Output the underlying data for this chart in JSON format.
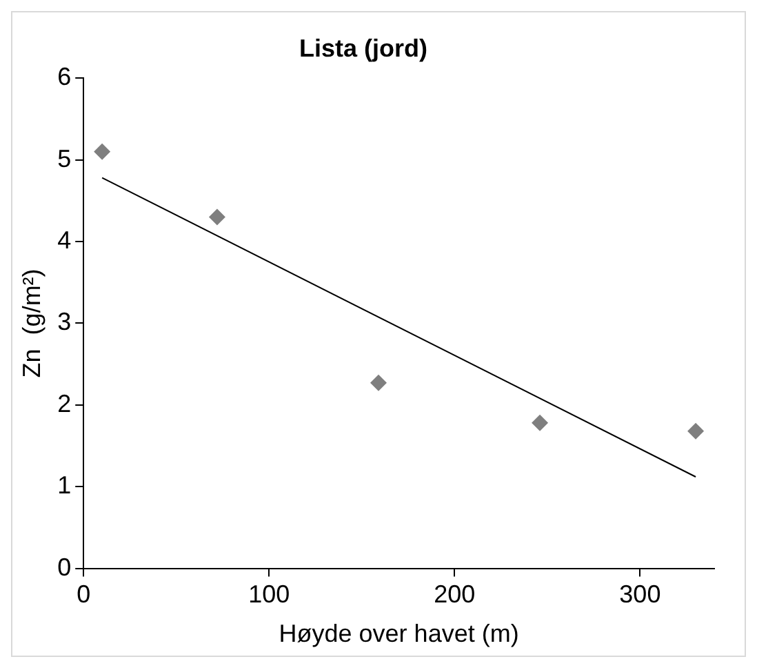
{
  "chart_data": {
    "type": "scatter",
    "title": "Lista (jord)",
    "xlabel": "Høyde over havet (m)",
    "ylabel": "Zn  (g/m²)",
    "xlim": [
      0,
      340
    ],
    "xticks": [
      0,
      100,
      200,
      300
    ],
    "ylim": [
      0,
      6
    ],
    "yticks": [
      0,
      1,
      2,
      3,
      4,
      5,
      6
    ],
    "grid": false,
    "legend": false,
    "series": [
      {
        "type": "scatter",
        "color": "#7f7f7f",
        "marker": "diamond",
        "x": [
          10,
          72,
          159,
          246,
          330
        ],
        "values": [
          5.1,
          4.3,
          2.27,
          1.78,
          1.68
        ]
      },
      {
        "type": "line",
        "color": "#000000",
        "marker": "none",
        "line_style": "solid",
        "x": [
          10,
          330
        ],
        "values": [
          4.78,
          1.12
        ]
      }
    ]
  }
}
